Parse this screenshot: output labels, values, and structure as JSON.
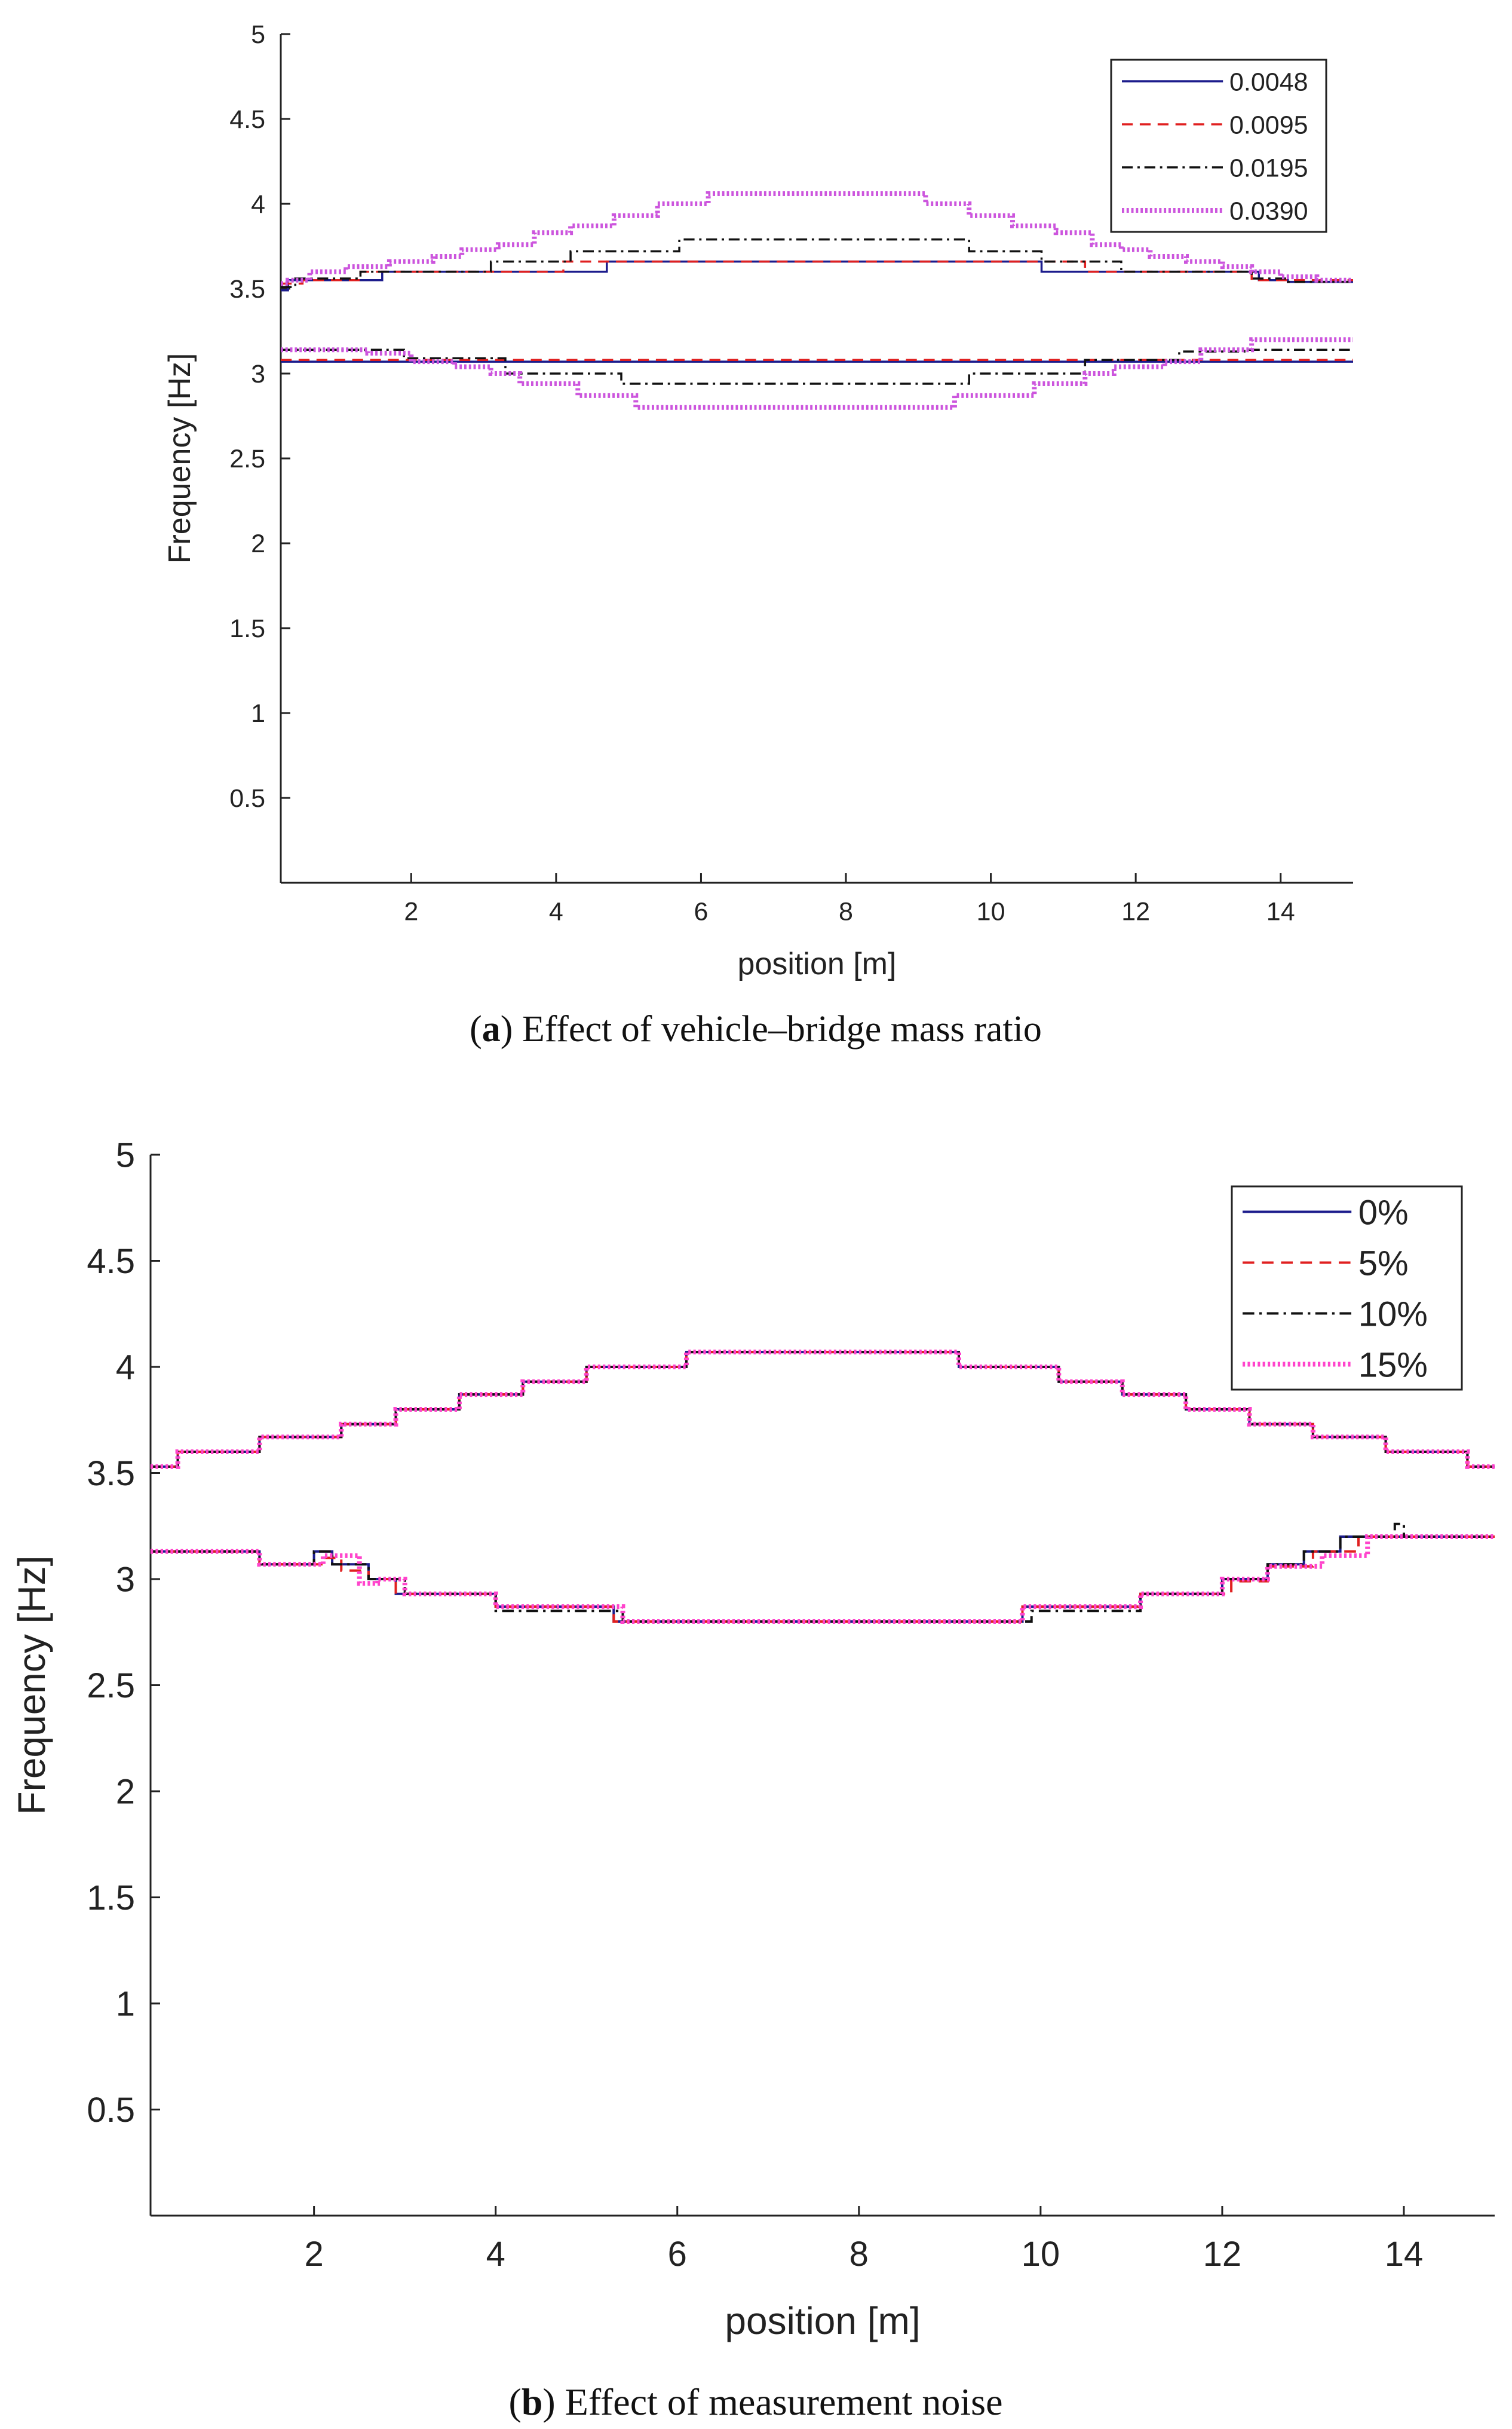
{
  "chart_data": [
    {
      "id": "a",
      "type": "line",
      "caption_letter": "a",
      "caption_text": ") Effect of vehicle–bridge mass ratio",
      "title": "",
      "xlabel": "position [m]",
      "ylabel": "Frequency [Hz]",
      "xlim": [
        0.2,
        15.0
      ],
      "ylim": [
        0,
        5
      ],
      "xticks": [
        2,
        4,
        6,
        8,
        10,
        12,
        14
      ],
      "yticks": [
        0.5,
        1,
        1.5,
        2,
        2.5,
        3,
        3.5,
        4,
        4.5,
        5
      ],
      "ytick_labels": [
        "0.5",
        "1",
        "1.5",
        "2",
        "2.5",
        "3",
        "3.5",
        "4",
        "4.5",
        "5"
      ],
      "grid": false,
      "legend_position": "top-right",
      "series": [
        {
          "name": "0.0048",
          "color": "#1c1c8c",
          "dash": "solid",
          "upper": {
            "x": [
              0.2,
              0.3,
              1.6,
              4.7,
              10.7,
              13.7,
              14.1,
              15.0
            ],
            "y": [
              3.49,
              3.55,
              3.6,
              3.66,
              3.6,
              3.55,
              3.54,
              3.54
            ]
          },
          "lower": {
            "x": [
              0.2,
              15.0
            ],
            "y": [
              3.07,
              3.07
            ]
          }
        },
        {
          "name": "0.0095",
          "color": "#e02020",
          "dash": "dash",
          "upper": {
            "x": [
              0.2,
              0.5,
              1.3,
              4.1,
              11.3,
              13.6,
              15.0
            ],
            "y": [
              3.53,
              3.55,
              3.6,
              3.66,
              3.6,
              3.55,
              3.55
            ]
          },
          "lower": {
            "x": [
              0.2,
              15.0
            ],
            "y": [
              3.08,
              3.08
            ]
          }
        },
        {
          "name": "0.0195",
          "color": "#111111",
          "dash": "dashdot",
          "upper": {
            "x": [
              0.2,
              0.4,
              1.3,
              3.1,
              4.2,
              5.7,
              9.7,
              10.7,
              11.8,
              13.6,
              14.1,
              15.0
            ],
            "y": [
              3.51,
              3.56,
              3.6,
              3.66,
              3.72,
              3.79,
              3.72,
              3.66,
              3.6,
              3.56,
              3.54,
              3.54
            ]
          },
          "lower": {
            "x": [
              0.2,
              1.9,
              3.3,
              4.9,
              9.7,
              11.3,
              12.6,
              13.5,
              15.0
            ],
            "y": [
              3.14,
              3.09,
              3.0,
              2.94,
              3.0,
              3.08,
              3.13,
              3.14,
              3.14
            ]
          }
        },
        {
          "name": "0.0390",
          "color": "#cc55dd",
          "dash": "dot",
          "upper": {
            "x": [
              0.2,
              0.3,
              0.6,
              1.1,
              1.7,
              2.3,
              2.7,
              3.2,
              3.7,
              4.2,
              4.8,
              5.4,
              6.1,
              9.1,
              9.7,
              10.3,
              10.9,
              11.4,
              11.8,
              12.2,
              12.7,
              13.2,
              13.6,
              14.0,
              14.5,
              15.0
            ],
            "y": [
              3.53,
              3.55,
              3.6,
              3.63,
              3.66,
              3.69,
              3.73,
              3.76,
              3.83,
              3.87,
              3.93,
              4.0,
              4.06,
              4.0,
              3.93,
              3.87,
              3.83,
              3.76,
              3.73,
              3.69,
              3.66,
              3.63,
              3.6,
              3.57,
              3.55,
              3.55
            ]
          },
          "lower": {
            "x": [
              0.2,
              1.4,
              2.0,
              2.6,
              3.1,
              3.5,
              4.3,
              5.1,
              9.5,
              10.6,
              11.3,
              11.7,
              12.4,
              12.9,
              13.6,
              15.0
            ],
            "y": [
              3.14,
              3.12,
              3.07,
              3.04,
              3.0,
              2.94,
              2.87,
              2.8,
              2.87,
              2.94,
              3.0,
              3.04,
              3.07,
              3.14,
              3.2,
              3.2
            ]
          }
        }
      ]
    },
    {
      "id": "b",
      "type": "line",
      "caption_letter": "b",
      "caption_text": ") Effect of measurement noise",
      "title": "",
      "xlabel": "position [m]",
      "ylabel": "Frequency [Hz]",
      "xlim": [
        0.2,
        15.0
      ],
      "ylim": [
        0,
        5
      ],
      "xticks": [
        2,
        4,
        6,
        8,
        10,
        12,
        14
      ],
      "yticks": [
        0.5,
        1,
        1.5,
        2,
        2.5,
        3,
        3.5,
        4,
        4.5,
        5
      ],
      "ytick_labels": [
        "0.5",
        "1",
        "1.5",
        "2",
        "2.5",
        "3",
        "3.5",
        "4",
        "4.5",
        "5"
      ],
      "grid": false,
      "legend_position": "top-right",
      "series": [
        {
          "name": "0%",
          "color": "#1c1c8c",
          "dash": "solid",
          "upper": {
            "x": [
              0.2,
              0.5,
              1.4,
              2.3,
              2.9,
              3.6,
              4.3,
              5.0,
              6.1,
              9.1,
              10.2,
              10.9,
              11.6,
              12.3,
              13.0,
              13.8,
              14.7,
              15.0
            ],
            "y": [
              3.53,
              3.6,
              3.67,
              3.73,
              3.8,
              3.87,
              3.93,
              4.0,
              4.07,
              4.0,
              3.93,
              3.87,
              3.8,
              3.73,
              3.67,
              3.6,
              3.53,
              3.53
            ]
          },
          "lower": {
            "x": [
              0.2,
              1.4,
              2.0,
              2.2,
              2.6,
              2.9,
              4.0,
              5.3,
              9.8,
              11.1,
              12.0,
              12.5,
              12.9,
              13.3,
              15.0
            ],
            "y": [
              3.13,
              3.07,
              3.13,
              3.07,
              3.0,
              2.93,
              2.87,
              2.8,
              2.87,
              2.93,
              3.0,
              3.07,
              3.13,
              3.2,
              3.2
            ]
          }
        },
        {
          "name": "5%",
          "color": "#e02020",
          "dash": "dash",
          "upper": {
            "x": [
              0.2,
              0.5,
              1.4,
              2.3,
              2.9,
              3.6,
              4.3,
              5.0,
              6.1,
              9.1,
              10.2,
              10.9,
              11.6,
              12.3,
              13.0,
              13.8,
              14.7,
              15.0
            ],
            "y": [
              3.53,
              3.6,
              3.67,
              3.73,
              3.8,
              3.87,
              3.93,
              4.0,
              4.07,
              4.0,
              3.93,
              3.87,
              3.8,
              3.73,
              3.67,
              3.6,
              3.53,
              3.53
            ]
          },
          "lower": {
            "x": [
              0.2,
              1.4,
              2.1,
              2.3,
              2.6,
              2.9,
              4.0,
              5.3,
              9.8,
              11.1,
              12.1,
              12.5,
              13.0,
              13.5,
              15.0
            ],
            "y": [
              3.13,
              3.07,
              3.1,
              3.04,
              3.0,
              2.93,
              2.87,
              2.8,
              2.87,
              2.93,
              2.99,
              3.06,
              3.13,
              3.2,
              3.2
            ]
          }
        },
        {
          "name": "10%",
          "color": "#111111",
          "dash": "dashdot",
          "upper": {
            "x": [
              0.2,
              0.5,
              1.4,
              2.3,
              2.9,
              3.6,
              4.3,
              5.0,
              6.1,
              9.1,
              10.2,
              10.9,
              11.6,
              12.3,
              13.0,
              13.8,
              14.7,
              15.0
            ],
            "y": [
              3.53,
              3.6,
              3.67,
              3.73,
              3.8,
              3.87,
              3.93,
              4.0,
              4.07,
              4.0,
              3.93,
              3.87,
              3.8,
              3.73,
              3.67,
              3.6,
              3.53,
              3.53
            ]
          },
          "lower": {
            "x": [
              0.2,
              1.4,
              2.0,
              2.2,
              2.6,
              3.0,
              4.0,
              5.4,
              9.9,
              11.1,
              12.0,
              12.5,
              12.9,
              13.3,
              13.9,
              14.0,
              15.0
            ],
            "y": [
              3.13,
              3.07,
              3.13,
              3.07,
              3.0,
              2.93,
              2.85,
              2.8,
              2.85,
              2.93,
              3.0,
              3.07,
              3.13,
              3.2,
              3.26,
              3.2,
              3.2
            ]
          }
        },
        {
          "name": "15%",
          "color": "#ff44cc",
          "dash": "dot",
          "upper": {
            "x": [
              0.2,
              0.5,
              1.4,
              2.3,
              2.9,
              3.6,
              4.3,
              5.0,
              6.1,
              9.1,
              10.2,
              10.9,
              11.6,
              12.3,
              13.0,
              13.8,
              14.7,
              15.0
            ],
            "y": [
              3.53,
              3.6,
              3.67,
              3.73,
              3.8,
              3.87,
              3.93,
              4.0,
              4.07,
              4.0,
              3.93,
              3.87,
              3.8,
              3.73,
              3.67,
              3.6,
              3.53,
              3.53
            ]
          },
          "lower": {
            "x": [
              0.2,
              1.4,
              2.1,
              2.5,
              2.7,
              3.0,
              4.0,
              5.4,
              9.8,
              11.1,
              12.0,
              12.5,
              13.1,
              13.6,
              15.0
            ],
            "y": [
              3.13,
              3.07,
              3.11,
              2.98,
              3.0,
              2.93,
              2.87,
              2.8,
              2.87,
              2.93,
              3.0,
              3.06,
              3.11,
              3.2,
              3.2
            ]
          }
        }
      ]
    }
  ]
}
